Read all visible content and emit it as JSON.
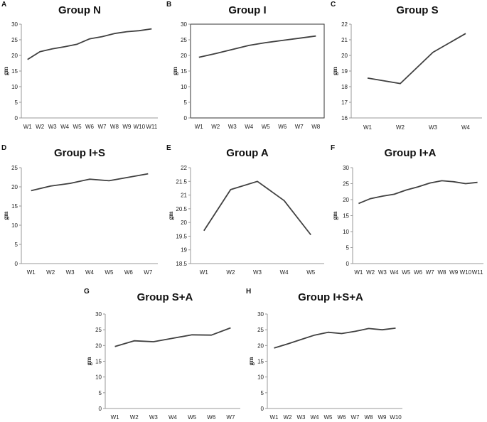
{
  "chart_data": [
    {
      "letter": "A",
      "title": "Group N",
      "type": "line",
      "ylabel": "gm",
      "ylim": [
        0,
        30
      ],
      "yticks": [
        0,
        5,
        10,
        15,
        20,
        25,
        30
      ],
      "categories": [
        "W1",
        "W2",
        "W3",
        "W4",
        "W5",
        "W6",
        "W7",
        "W8",
        "W9",
        "W10",
        "W11"
      ],
      "values": [
        18.7,
        21.2,
        22.1,
        22.8,
        23.6,
        25.3,
        26.0,
        27.0,
        27.6,
        27.9,
        28.5
      ]
    },
    {
      "letter": "B",
      "title": "Group I",
      "type": "line",
      "ylabel": "gm",
      "ylim": [
        0,
        30
      ],
      "yticks": [
        0,
        5,
        10,
        15,
        20,
        25,
        30
      ],
      "categories": [
        "W1",
        "W2",
        "W3",
        "W4",
        "W5",
        "W6",
        "W7",
        "W8"
      ],
      "values": [
        19.4,
        20.6,
        21.9,
        23.2,
        24.1,
        24.8,
        25.5,
        26.2
      ]
    },
    {
      "letter": "C",
      "title": "Group S",
      "type": "line",
      "ylabel": "gm",
      "ylim": [
        16,
        22
      ],
      "yticks": [
        16,
        17,
        18,
        19,
        20,
        21,
        22
      ],
      "categories": [
        "W1",
        "W2",
        "W3",
        "W4"
      ],
      "values": [
        18.55,
        18.2,
        20.2,
        21.4
      ]
    },
    {
      "letter": "D",
      "title": "Group I+S",
      "type": "line",
      "ylabel": "gm",
      "ylim": [
        0,
        25
      ],
      "yticks": [
        0,
        5,
        10,
        15,
        20,
        25
      ],
      "categories": [
        "W1",
        "W2",
        "W3",
        "W4",
        "W5",
        "W6",
        "W7"
      ],
      "values": [
        19.0,
        20.2,
        20.9,
        22.0,
        21.6,
        22.5,
        23.4
      ]
    },
    {
      "letter": "E",
      "title": "Group A",
      "type": "line",
      "ylabel": "gm",
      "ylim": [
        18.5,
        22
      ],
      "yticks": [
        18.5,
        19,
        19.5,
        20,
        20.5,
        21,
        21.5,
        22
      ],
      "categories": [
        "W1",
        "W2",
        "W3",
        "W4",
        "W5"
      ],
      "values": [
        19.7,
        21.2,
        21.5,
        20.8,
        19.55
      ]
    },
    {
      "letter": "F",
      "title": "Group I+A",
      "type": "line",
      "ylabel": "gm",
      "ylim": [
        0,
        30
      ],
      "yticks": [
        0,
        5,
        10,
        15,
        20,
        25,
        30
      ],
      "categories": [
        "W1",
        "W2",
        "W3",
        "W4",
        "W5",
        "W6",
        "W7",
        "W8",
        "W9",
        "W10",
        "W11"
      ],
      "values": [
        18.8,
        20.3,
        21.1,
        21.7,
        23.0,
        24.0,
        25.2,
        25.9,
        25.6,
        25.0,
        25.4
      ]
    },
    {
      "letter": "G",
      "title": "Group S+A",
      "type": "line",
      "ylabel": "gm",
      "ylim": [
        0,
        30
      ],
      "yticks": [
        0,
        5,
        10,
        15,
        20,
        25,
        30
      ],
      "categories": [
        "W1",
        "W2",
        "W3",
        "W4",
        "W5",
        "W6",
        "W7"
      ],
      "values": [
        19.7,
        21.5,
        21.2,
        22.3,
        23.4,
        23.3,
        25.6
      ]
    },
    {
      "letter": "H",
      "title": "Group I+S+A",
      "type": "line",
      "ylabel": "gm",
      "ylim": [
        0,
        30
      ],
      "yticks": [
        0,
        5,
        10,
        15,
        20,
        25,
        30
      ],
      "categories": [
        "W1",
        "W2",
        "W3",
        "W4",
        "W5",
        "W6",
        "W7",
        "W8",
        "W9",
        "W10"
      ],
      "values": [
        19.2,
        20.5,
        21.9,
        23.3,
        24.2,
        23.8,
        24.5,
        25.4,
        25.0,
        25.5
      ]
    }
  ],
  "colors": {
    "line": "#404040",
    "axis": "#999999",
    "text": "#111111"
  }
}
